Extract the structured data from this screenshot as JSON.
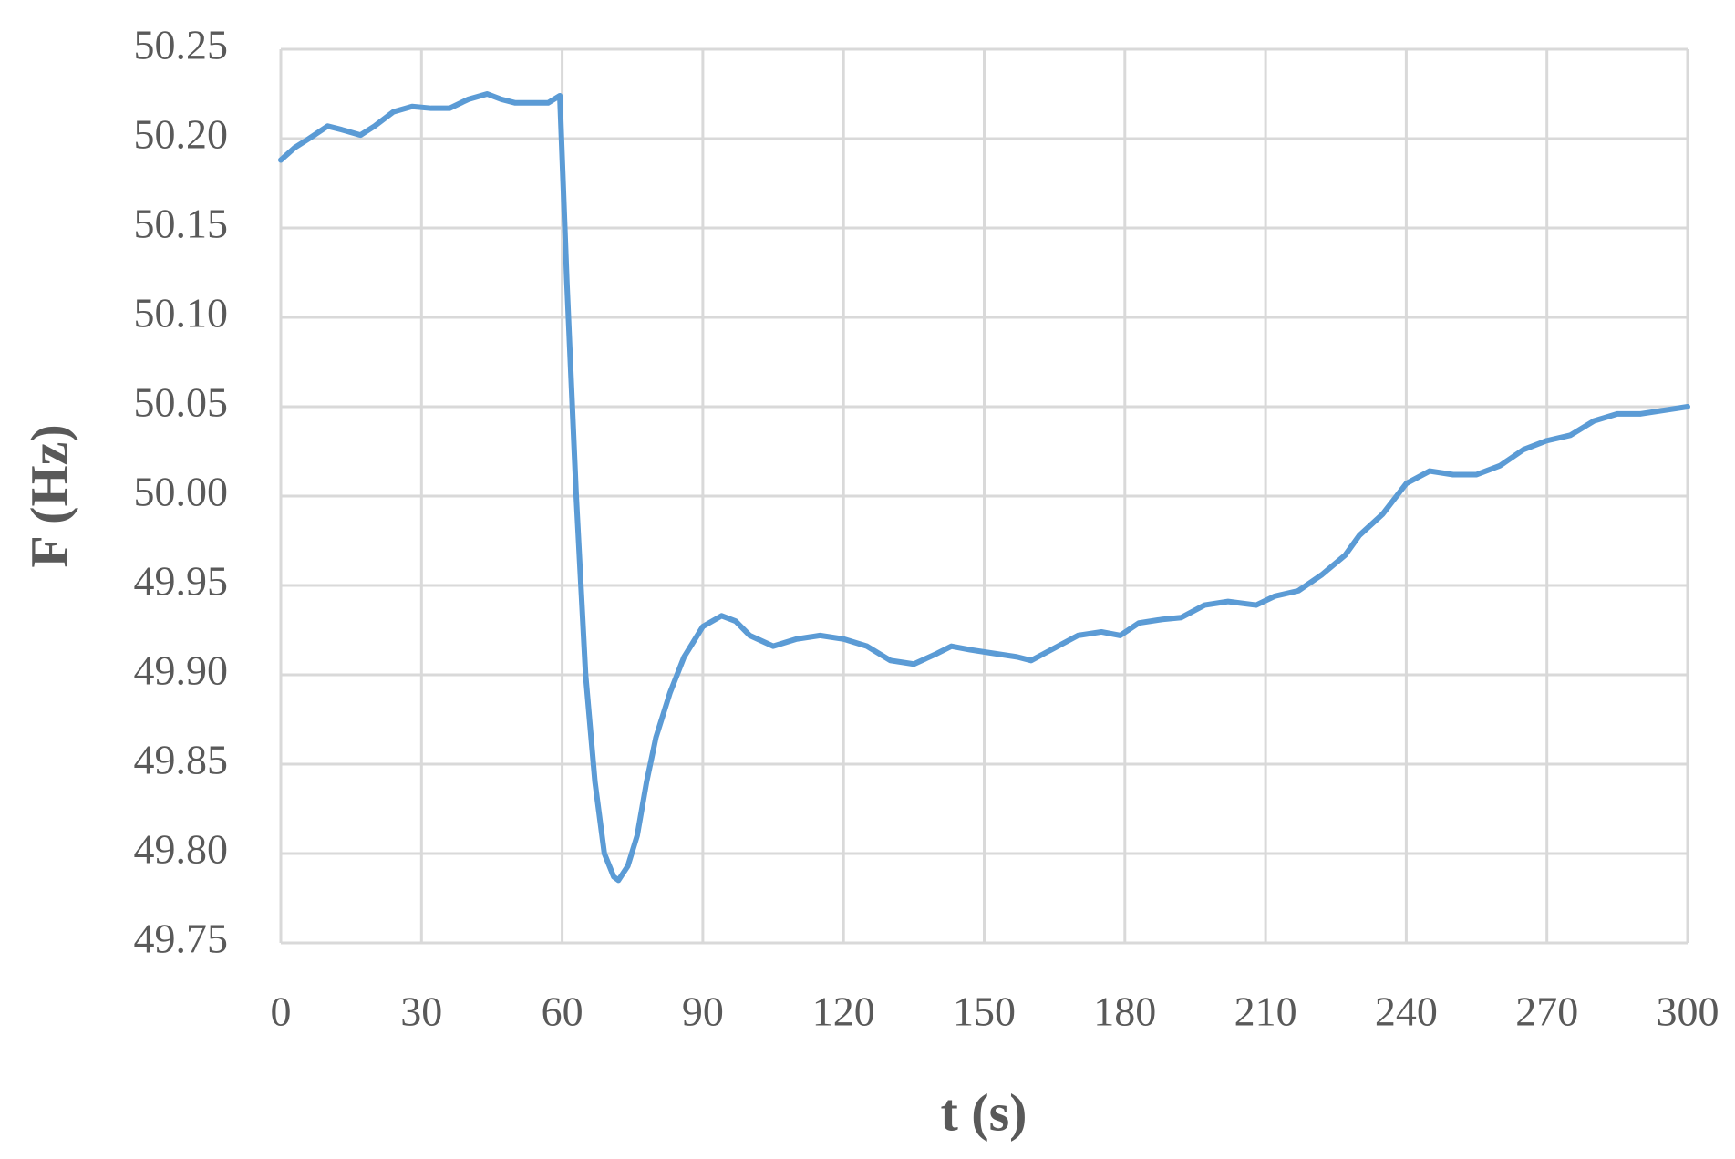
{
  "chart_data": {
    "type": "line",
    "x_label": "t (s)",
    "y_label": "F (Hz)",
    "x": [
      0,
      3,
      6,
      10,
      13,
      17,
      20,
      24,
      28,
      32,
      36,
      40,
      44,
      47,
      50,
      54,
      57,
      59.5,
      61,
      63,
      65,
      67,
      69,
      71,
      72,
      74,
      76,
      78,
      80,
      83,
      86,
      90,
      94,
      97,
      100,
      105,
      110,
      115,
      120,
      125,
      130,
      135,
      140,
      143,
      147,
      152,
      157,
      160,
      165,
      170,
      175,
      179,
      183,
      188,
      192,
      197,
      202,
      208,
      212,
      217,
      222,
      227,
      230,
      235,
      240,
      245,
      250,
      255,
      260,
      265,
      270,
      275,
      280,
      285,
      290,
      295,
      300
    ],
    "values": [
      50.188,
      50.195,
      50.2,
      50.207,
      50.205,
      50.202,
      50.207,
      50.215,
      50.218,
      50.217,
      50.217,
      50.222,
      50.225,
      50.222,
      50.22,
      50.22,
      50.22,
      50.224,
      50.12,
      50.0,
      49.9,
      49.84,
      49.8,
      49.787,
      49.785,
      49.793,
      49.81,
      49.84,
      49.865,
      49.89,
      49.91,
      49.927,
      49.933,
      49.93,
      49.922,
      49.916,
      49.92,
      49.922,
      49.92,
      49.916,
      49.908,
      49.906,
      49.912,
      49.916,
      49.914,
      49.912,
      49.91,
      49.908,
      49.915,
      49.922,
      49.924,
      49.922,
      49.929,
      49.931,
      49.932,
      49.939,
      49.941,
      49.939,
      49.944,
      49.947,
      49.956,
      49.967,
      49.978,
      49.99,
      50.007,
      50.014,
      50.012,
      50.012,
      50.017,
      50.026,
      50.031,
      50.034,
      50.042,
      50.046,
      50.046,
      50.048,
      50.05
    ],
    "color": "#5b9bd5",
    "xlim": [
      0,
      300
    ],
    "xticks": [
      0,
      30,
      60,
      90,
      120,
      150,
      180,
      210,
      240,
      270,
      300
    ],
    "ylim": [
      49.75,
      50.25
    ],
    "yticks": [
      49.75,
      {
        "value": 49.8,
        "label": "49.80"
      },
      49.85,
      {
        "value": 49.9,
        "label": "49.90"
      },
      49.95,
      {
        "value": 50.0,
        "label": "50.00"
      },
      50.05,
      {
        "value": 50.1,
        "label": "50.10"
      },
      50.15,
      {
        "value": 50.2,
        "label": "50.20"
      },
      50.25
    ],
    "grid": true
  }
}
